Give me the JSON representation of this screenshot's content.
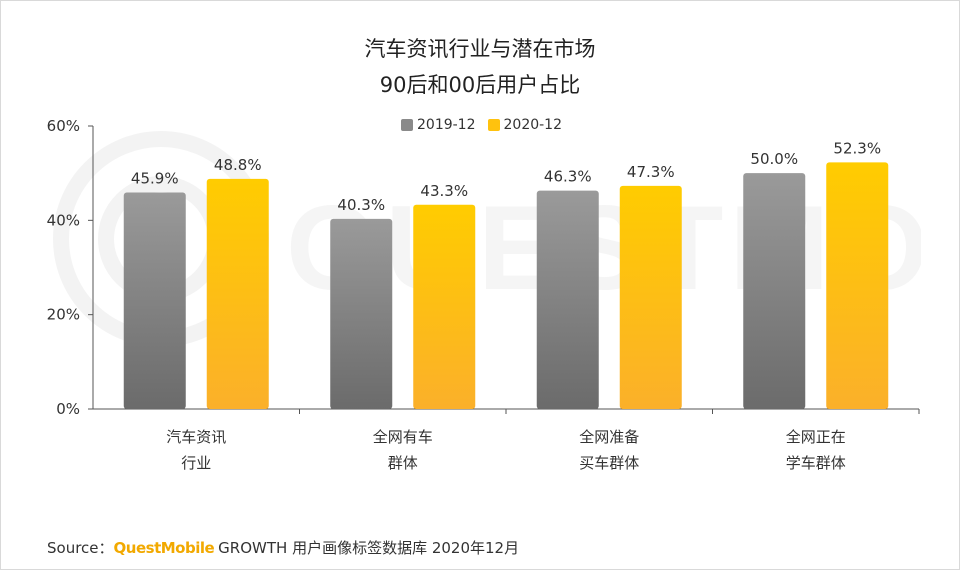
{
  "chart_data": {
    "type": "bar",
    "title_lines": [
      "汽车资讯行业与潜在市场",
      "90后和00后用户占比"
    ],
    "categories": [
      [
        "汽车资讯",
        "行业"
      ],
      [
        "全网有车",
        "群体"
      ],
      [
        "全网准备",
        "买车群体"
      ],
      [
        "全网正在",
        "学车群体"
      ]
    ],
    "series": [
      {
        "name": "2019-12",
        "values": [
          45.9,
          40.3,
          46.3,
          50.0
        ],
        "labels": [
          "45.9%",
          "40.3%",
          "46.3%",
          "50.0%"
        ],
        "color_top": "#9a9a9a",
        "color_bottom": "#6b6b6b"
      },
      {
        "name": "2020-12",
        "values": [
          48.8,
          43.3,
          47.3,
          52.3
        ],
        "labels": [
          "48.8%",
          "43.3%",
          "47.3%",
          "52.3%"
        ],
        "color_top": "#FFCC00",
        "color_bottom": "#FBB02A"
      }
    ],
    "ylim": [
      0,
      60
    ],
    "yticks": [
      0,
      20,
      40,
      60
    ],
    "ytick_labels": [
      "0%",
      "20%",
      "40%",
      "60%"
    ],
    "xlabel": "",
    "ylabel": "",
    "grid": false,
    "legend": "top-center"
  },
  "source": {
    "prefix": "Source：",
    "brand": "QuestMobile",
    "text": "GROWTH 用户画像标签数据库 2020年12月"
  }
}
